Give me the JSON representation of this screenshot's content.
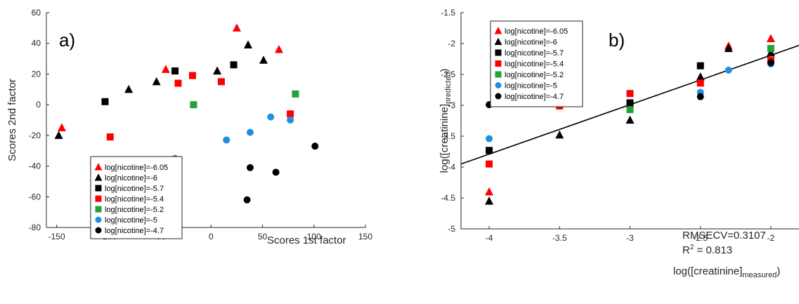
{
  "chart_data": [
    {
      "type": "scatter",
      "panel_label": "a)",
      "xlabel": "Scores 1st factor",
      "ylabel": "Scores 2nd factor",
      "xlim": [
        -160,
        150
      ],
      "ylim": [
        -80,
        60
      ],
      "xticks": [
        "-150",
        "-100",
        "-50",
        "0",
        "50",
        "100",
        "150"
      ],
      "yticks": [
        "60",
        "40",
        "20",
        "0",
        "-20",
        "-40",
        "-60",
        "-80"
      ],
      "grid": false,
      "legend_position": "bottom-left",
      "series": [
        {
          "name": "log[nicotine]=-6.05",
          "marker": "triangle",
          "color": "#ff0000",
          "points": [
            [
              -145,
              -15
            ],
            [
              -44,
              23
            ],
            [
              25,
              50
            ],
            [
              66,
              36
            ]
          ]
        },
        {
          "name": "log[nicotine]=-6",
          "marker": "triangle",
          "color": "#000000",
          "points": [
            [
              -148,
              -20
            ],
            [
              -80,
              10
            ],
            [
              -53,
              15
            ],
            [
              6,
              22
            ],
            [
              36,
              39
            ],
            [
              51,
              29
            ]
          ]
        },
        {
          "name": "log[nicotine]=-5.7",
          "marker": "square",
          "color": "#000000",
          "points": [
            [
              -103,
              2
            ],
            [
              -35,
              22
            ],
            [
              22,
              26
            ]
          ]
        },
        {
          "name": "log[nicotine]=-5.4",
          "marker": "square",
          "color": "#ff0000",
          "points": [
            [
              -98,
              -21
            ],
            [
              -32,
              14
            ],
            [
              -18,
              19
            ],
            [
              10,
              15
            ],
            [
              77,
              -6
            ]
          ]
        },
        {
          "name": "log[nicotine]=-5.2",
          "marker": "square",
          "color": "#22a33a",
          "points": [
            [
              -17,
              0
            ],
            [
              82,
              7
            ]
          ]
        },
        {
          "name": "log[nicotine]=-5",
          "marker": "circle",
          "color": "#1f8fe0",
          "points": [
            [
              -35,
              -35
            ],
            [
              15,
              -23
            ],
            [
              38,
              -18
            ],
            [
              58,
              -8
            ],
            [
              77,
              -10
            ]
          ]
        },
        {
          "name": "log[nicotine]=-4.7",
          "marker": "circle",
          "color": "#000000",
          "points": [
            [
              35,
              -62
            ],
            [
              38,
              -41
            ],
            [
              63,
              -44
            ],
            [
              101,
              -27
            ]
          ]
        }
      ]
    },
    {
      "type": "scatter",
      "panel_label": "b)",
      "xlabel": "log([creatinine]measured)",
      "ylabel": "log([creatinine]predicted)",
      "xlim": [
        -4.2,
        -1.8
      ],
      "ylim": [
        -5,
        -1.5
      ],
      "xticks": [
        "-4",
        "-3.5",
        "-3",
        "-2.5",
        "-2"
      ],
      "yticks": [
        "-1.5",
        "-2",
        "-2.5",
        "-3",
        "-3.5",
        "-4",
        "-4.5",
        "-5"
      ],
      "grid": false,
      "legend_position": "top-left",
      "regression_line": [
        [
          -4.2,
          -3.95
        ],
        [
          -1.8,
          -2.03
        ]
      ],
      "annotations": {
        "rmsecv": "RMSECV=0.3107",
        "r2_prefix": "R",
        "r2_sup": "2",
        "r2_value": " = 0.813"
      },
      "series": [
        {
          "name": "log[nicotine]=-6.05",
          "marker": "triangle",
          "color": "#ff0000",
          "points": [
            [
              -4,
              -4.4
            ],
            [
              -3,
              -2.98
            ],
            [
              -2.3,
              -2.04
            ],
            [
              -2,
              -1.92
            ]
          ]
        },
        {
          "name": "log[nicotine]=-6",
          "marker": "triangle",
          "color": "#000000",
          "points": [
            [
              -4,
              -4.55
            ],
            [
              -3.5,
              -3.48
            ],
            [
              -3,
              -3.24
            ],
            [
              -2.5,
              -2.54
            ],
            [
              -2.3,
              -2.08
            ],
            [
              -2,
              -2.15
            ]
          ]
        },
        {
          "name": "log[nicotine]=-5.7",
          "marker": "square",
          "color": "#000000",
          "points": [
            [
              -4,
              -3.73
            ],
            [
              -3,
              -2.96
            ],
            [
              -2.5,
              -2.36
            ]
          ]
        },
        {
          "name": "log[nicotine]=-5.4",
          "marker": "square",
          "color": "#ff0000",
          "points": [
            [
              -4,
              -3.95
            ],
            [
              -3.5,
              -3.01
            ],
            [
              -3,
              -2.81
            ],
            [
              -2.5,
              -2.64
            ],
            [
              -2,
              -2.27
            ]
          ]
        },
        {
          "name": "log[nicotine]=-5.2",
          "marker": "square",
          "color": "#22a33a",
          "points": [
            [
              -3,
              -3.07
            ],
            [
              -2,
              -2.08
            ]
          ]
        },
        {
          "name": "log[nicotine]=-5",
          "marker": "circle",
          "color": "#1f8fe0",
          "points": [
            [
              -4,
              -3.54
            ],
            [
              -2.5,
              -2.79
            ],
            [
              -2.3,
              -2.43
            ],
            [
              -2,
              -2.33
            ]
          ]
        },
        {
          "name": "log[nicotine]=-4.7",
          "marker": "circle",
          "color": "#000000",
          "points": [
            [
              -4,
              -2.99
            ],
            [
              -2.5,
              -2.86
            ],
            [
              -2,
              -2.31
            ]
          ]
        }
      ]
    }
  ],
  "labels": {
    "b_xlabel_main": "log([creatinine]",
    "b_xlabel_sub": "measured",
    "b_xlabel_end": ")",
    "b_ylabel_main": "log([creatinine]",
    "b_ylabel_sub": "predicted",
    "b_ylabel_end": ")"
  }
}
